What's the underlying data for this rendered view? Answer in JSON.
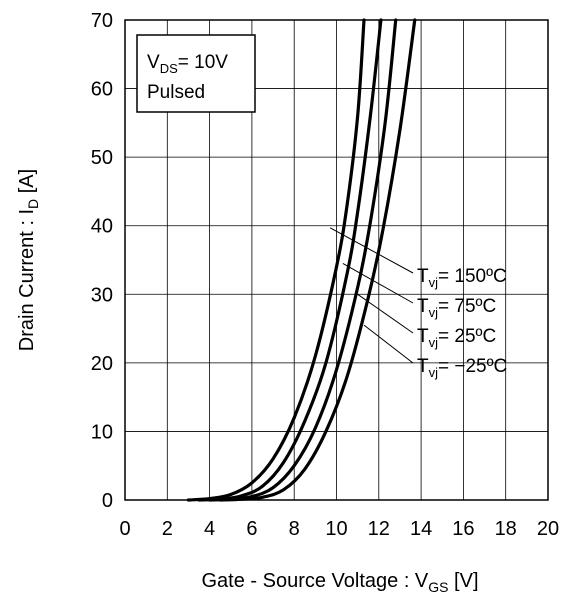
{
  "chart_data": {
    "type": "line",
    "xlabel": {
      "prefix": "Gate - Source Voltage : V",
      "sub": "GS",
      "suffix": " [V]"
    },
    "ylabel": {
      "prefix": "Drain Current : I",
      "sub": "D",
      "suffix": " [A]"
    },
    "xlim": [
      0,
      20
    ],
    "ylim": [
      0,
      70
    ],
    "xticks": [
      0,
      2,
      4,
      6,
      8,
      10,
      12,
      14,
      16,
      18,
      20
    ],
    "yticks": [
      0,
      10,
      20,
      30,
      40,
      50,
      60,
      70
    ],
    "grid": true,
    "legend_box": {
      "line1": {
        "prefix": "V",
        "sub": "DS",
        "suffix": "= 10V"
      },
      "line2": "Pulsed",
      "position": "top-left"
    },
    "series": [
      {
        "name": "Tvj= 150ºC",
        "label": {
          "prefix": "T",
          "sub": "vj",
          "suffix": "= 150ºC"
        },
        "points": [
          [
            3.0,
            0
          ],
          [
            4.0,
            0.2
          ],
          [
            5.0,
            0.8
          ],
          [
            6.0,
            2.5
          ],
          [
            7.0,
            6.0
          ],
          [
            8.0,
            12.0
          ],
          [
            9.0,
            21.0
          ],
          [
            10.0,
            34.0
          ],
          [
            10.5,
            43.0
          ],
          [
            11.0,
            56.0
          ],
          [
            11.3,
            70.0
          ]
        ]
      },
      {
        "name": "Tvj= 75ºC",
        "label": {
          "prefix": "T",
          "sub": "vj",
          "suffix": "= 75ºC"
        },
        "points": [
          [
            3.5,
            0
          ],
          [
            4.5,
            0.1
          ],
          [
            5.5,
            0.6
          ],
          [
            6.5,
            2.0
          ],
          [
            7.5,
            5.5
          ],
          [
            8.5,
            11.5
          ],
          [
            9.5,
            20.0
          ],
          [
            10.5,
            33.0
          ],
          [
            11.0,
            42.0
          ],
          [
            11.6,
            56.0
          ],
          [
            12.1,
            70.0
          ]
        ]
      },
      {
        "name": "Tvj= 25ºC",
        "label": {
          "prefix": "T",
          "sub": "vj",
          "suffix": "= 25ºC"
        },
        "points": [
          [
            4.0,
            0
          ],
          [
            5.0,
            0.1
          ],
          [
            6.0,
            0.5
          ],
          [
            7.0,
            1.8
          ],
          [
            8.0,
            5.0
          ],
          [
            9.0,
            10.5
          ],
          [
            10.0,
            19.0
          ],
          [
            11.0,
            31.0
          ],
          [
            11.6,
            40.5
          ],
          [
            12.3,
            55.0
          ],
          [
            12.8,
            70.0
          ]
        ]
      },
      {
        "name": "Tvj= −25ºC",
        "label": {
          "prefix": "T",
          "sub": "vj",
          "suffix": "= −25ºC"
        },
        "points": [
          [
            4.5,
            0
          ],
          [
            5.5,
            0.1
          ],
          [
            6.5,
            0.4
          ],
          [
            7.5,
            1.5
          ],
          [
            8.5,
            4.5
          ],
          [
            9.5,
            10.0
          ],
          [
            10.5,
            18.0
          ],
          [
            11.5,
            29.5
          ],
          [
            12.2,
            39.5
          ],
          [
            13.0,
            54.0
          ],
          [
            13.7,
            70.0
          ]
        ]
      }
    ],
    "annotations": [
      {
        "series": 0,
        "from": [
          9.7,
          39.7
        ]
      },
      {
        "series": 1,
        "from": [
          10.3,
          34.5
        ]
      },
      {
        "series": 2,
        "from": [
          11.0,
          30.0
        ]
      },
      {
        "series": 3,
        "from": [
          11.3,
          25.5
        ]
      }
    ]
  }
}
